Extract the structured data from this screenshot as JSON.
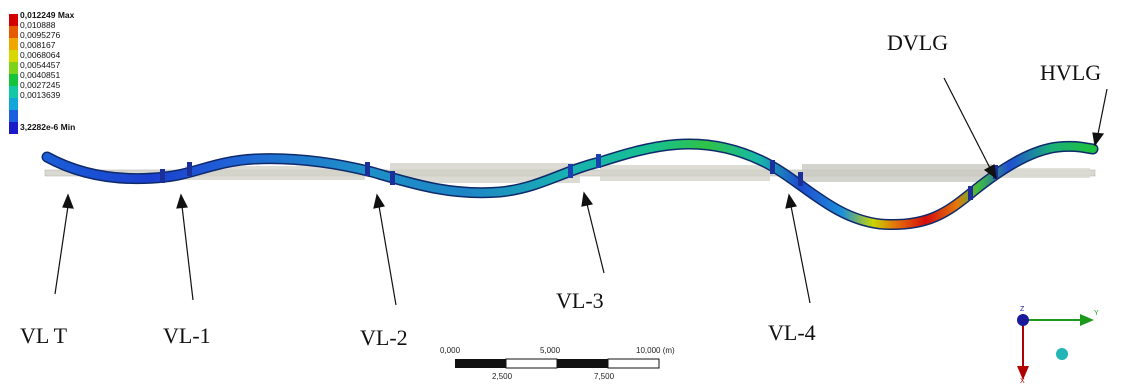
{
  "legend": {
    "max_label": "0,012249 Max",
    "levels": [
      "0,010888",
      "0,0095276",
      "0,008167",
      "0,0068064",
      "0,0054457",
      "0,0040851",
      "0,0027245",
      "0,0013639"
    ],
    "min_label": "3,2282e-6 Min",
    "colors": [
      "#d40000",
      "#e85a00",
      "#f0a800",
      "#d8d800",
      "#7fd21a",
      "#16c43c",
      "#13c9a5",
      "#12a7d8",
      "#1c5ee0",
      "#1a1ac8"
    ]
  },
  "callouts": {
    "vlt": "VL T",
    "vl1": "VL-1",
    "vl2": "VL-2",
    "vl3": "VL-3",
    "vl4": "VL-4",
    "dvlg": "DVLG",
    "hvlg": "HVLG"
  },
  "scale_bar": {
    "top_labels": [
      "0,000",
      "5,000",
      "10,000 (m)"
    ],
    "bottom_labels": [
      "2,500",
      "7,500"
    ]
  },
  "triad": {
    "y_label": "Y",
    "x_label": "X",
    "z_label": "Z",
    "y_color": "#1d9a1d",
    "x_color": "#b00000",
    "z_color": "#1a1a9a",
    "ball_color": "#22b5b5"
  }
}
